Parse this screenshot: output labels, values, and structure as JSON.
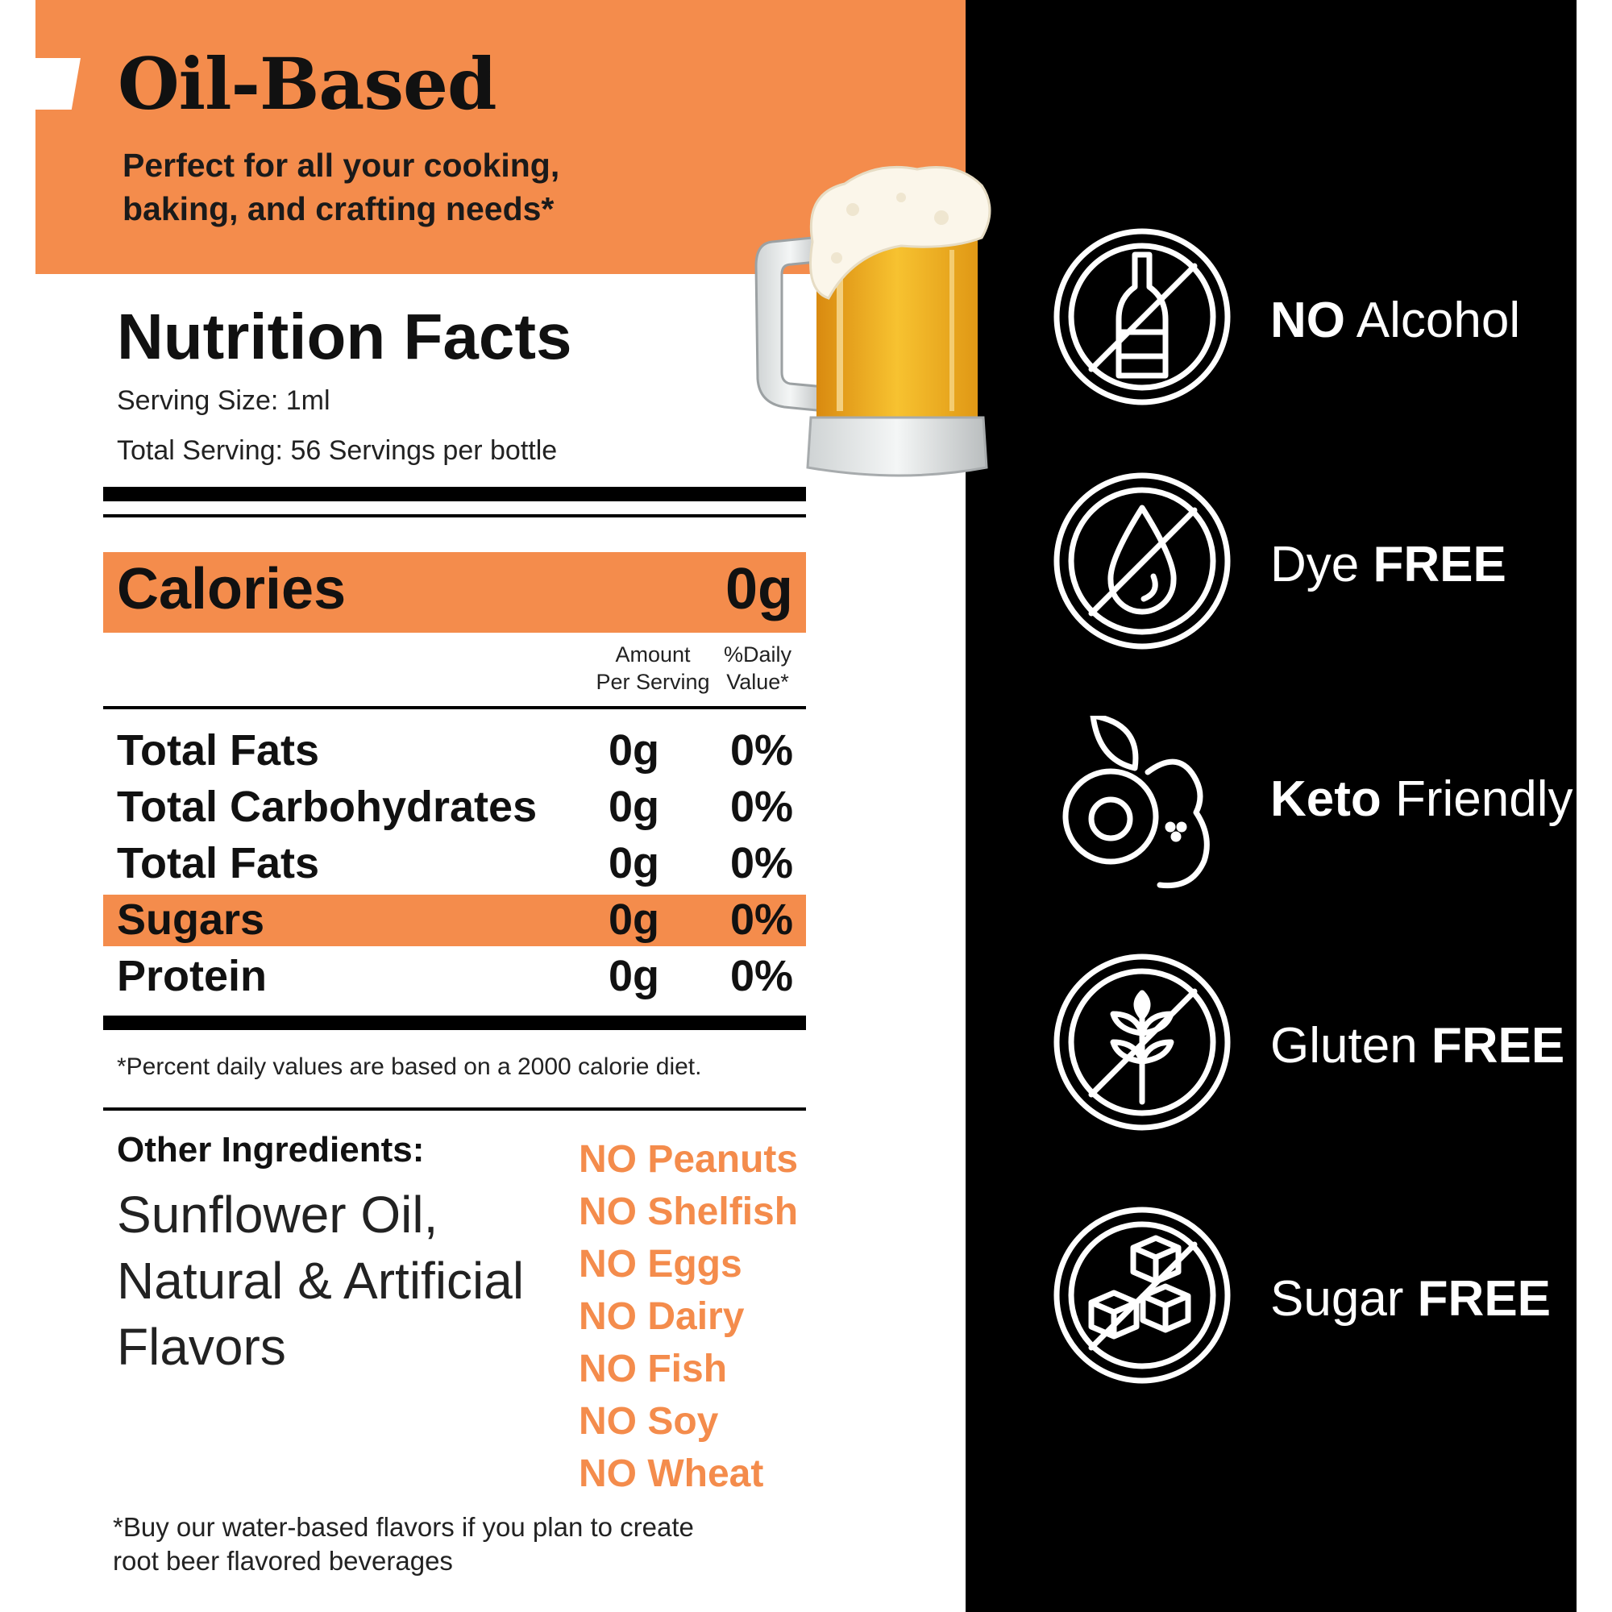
{
  "header": {
    "title": "Oil-Based",
    "subtitle_line1": "Perfect for all your cooking,",
    "subtitle_line2": "baking, and crafting needs*"
  },
  "nutrition": {
    "title": "Nutrition Facts",
    "serving_size": "Serving Size: 1ml",
    "total_serving": "Total Serving: 56 Servings per bottle",
    "calories_label": "Calories",
    "calories_value": "0g",
    "col_amount": "Amount\nPer Serving",
    "col_daily": "%Daily\nValue*",
    "rows": [
      {
        "name": "Total Fats",
        "amount": "0g",
        "daily": "0%"
      },
      {
        "name": "Total Carbohydrates",
        "amount": "0g",
        "daily": "0%"
      },
      {
        "name": "Total Fats",
        "amount": "0g",
        "daily": "0%"
      },
      {
        "name": "Sugars",
        "amount": "0g",
        "daily": "0%"
      },
      {
        "name": "Protein",
        "amount": "0g",
        "daily": "0%"
      }
    ],
    "footnote": "*Percent daily values are based on a 2000 calorie diet."
  },
  "ingredients": {
    "label": "Other Ingredients:",
    "line1": "Sunflower Oil,",
    "line2": "Natural & Artificial",
    "line3": "Flavors",
    "allergens": [
      "NO Peanuts",
      "NO Shelfish",
      "NO Eggs",
      "NO Dairy",
      "NO Fish",
      "NO Soy",
      "NO Wheat"
    ]
  },
  "bottom_note": {
    "line1": "*Buy our water-based flavors if you plan to create",
    "line2": "root beer flavored beverages"
  },
  "features": [
    {
      "icon": "no-alcohol-icon",
      "bold": "NO",
      "text": " Alcohol",
      "bold_first": true
    },
    {
      "icon": "dye-free-icon",
      "bold": "FREE",
      "text": "Dye ",
      "bold_first": false
    },
    {
      "icon": "keto-avocado-icon",
      "bold": "Keto",
      "text": " Friendly",
      "bold_first": true
    },
    {
      "icon": "gluten-free-icon",
      "bold": "FREE",
      "text": "Gluten ",
      "bold_first": false
    },
    {
      "icon": "sugar-free-icon",
      "bold": "FREE",
      "text": "Sugar ",
      "bold_first": false
    }
  ],
  "colors": {
    "accent": "#f48c4c",
    "panel": "#000000",
    "text": "#111111"
  }
}
